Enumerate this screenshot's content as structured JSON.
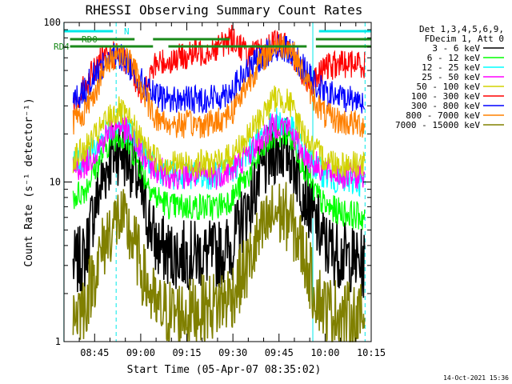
{
  "chart_data": {
    "type": "line",
    "title": "RHESSI Observing Summary Count Rates",
    "xlabel": "Start Time (05-Apr-07 08:35:02)",
    "ylabel": "Count Rate (s⁻¹ detector⁻¹)",
    "y_scale": "log",
    "ylim": [
      1,
      100
    ],
    "y_major_ticks": [
      1,
      10,
      100
    ],
    "x_tick_labels": [
      "08:45",
      "09:00",
      "09:15",
      "09:30",
      "09:45",
      "10:00",
      "10:15"
    ],
    "legend_header": [
      "Det 1,3,4,5,6,9,",
      "FDecim 1, Att 0"
    ],
    "legend_position": "right",
    "footer_timestamp": "14-Oct-2021 15:36",
    "flags": [
      {
        "name": "N",
        "color": "#00e8e8",
        "segments": [
          [
            "08:35",
            "08:51"
          ],
          [
            "09:58",
            "10:15"
          ]
        ]
      },
      {
        "name": "RD0",
        "color": "#1a8a1a",
        "segments": [
          [
            "08:37",
            "08:58"
          ],
          [
            "09:04",
            "09:29"
          ],
          [
            "09:57",
            "10:15"
          ]
        ]
      },
      {
        "name": "RD4",
        "color": "#1a8a1a",
        "segments": [
          [
            "08:37",
            "09:04"
          ],
          [
            "09:09",
            "09:54"
          ],
          [
            "09:57",
            "10:15"
          ]
        ]
      }
    ],
    "vertical_markers": [
      {
        "time": "08:35",
        "color": "#00e8e8",
        "style": "solid"
      },
      {
        "time": "08:52",
        "color": "#00e8e8",
        "style": "dashed"
      },
      {
        "time": "09:56",
        "color": "#00e8e8",
        "style": "solid"
      },
      {
        "time": "10:13",
        "color": "#00e8e8",
        "style": "dashed"
      }
    ],
    "series": [
      {
        "name": "3 - 6 keV",
        "color": "#000000",
        "x": [
          "08:38",
          "08:42",
          "08:46",
          "08:50",
          "08:53",
          "08:57",
          "09:01",
          "09:05",
          "09:10",
          "09:15",
          "09:20",
          "09:25",
          "09:30",
          "09:35",
          "09:40",
          "09:44",
          "09:48",
          "09:52",
          "09:56",
          "10:00",
          "10:05",
          "10:10",
          "10:13"
        ],
        "y": [
          3,
          3.4,
          8,
          14,
          16,
          13,
          7,
          4,
          3.5,
          3.5,
          3.5,
          3.5,
          4,
          7,
          12,
          16,
          16,
          10,
          6,
          4,
          3.5,
          3.2,
          3
        ]
      },
      {
        "name": "6 - 12 keV",
        "color": "#00ff00",
        "x": [
          "08:38",
          "08:42",
          "08:46",
          "08:50",
          "08:53",
          "08:57",
          "09:01",
          "09:05",
          "09:10",
          "09:15",
          "09:20",
          "09:25",
          "09:30",
          "09:35",
          "09:40",
          "09:44",
          "09:48",
          "09:52",
          "09:56",
          "10:00",
          "10:05",
          "10:10",
          "10:13"
        ],
        "y": [
          8,
          9,
          13,
          18,
          20,
          16,
          11,
          8,
          7,
          7,
          7,
          7,
          8,
          11,
          16,
          20,
          20,
          14,
          9,
          7,
          6.5,
          6.2,
          6
        ]
      },
      {
        "name": "12 - 25 keV",
        "color": "#00ffff",
        "x": [
          "08:38",
          "08:42",
          "08:46",
          "08:50",
          "08:53",
          "08:57",
          "09:01",
          "09:05",
          "09:10",
          "09:15",
          "09:20",
          "09:25",
          "09:30",
          "09:35",
          "09:40",
          "09:44",
          "09:48",
          "09:52",
          "09:56",
          "10:00",
          "10:05",
          "10:10",
          "10:13"
        ],
        "y": [
          13,
          14,
          17,
          22,
          24,
          20,
          15,
          12,
          11,
          11,
          11,
          11,
          12,
          15,
          20,
          24,
          23,
          17,
          13,
          11,
          10,
          10,
          10
        ]
      },
      {
        "name": "25 - 50 keV",
        "color": "#ff00ff",
        "x": [
          "08:38",
          "08:42",
          "08:46",
          "08:50",
          "08:53",
          "08:57",
          "09:01",
          "09:05",
          "09:10",
          "09:15",
          "09:20",
          "09:25",
          "09:30",
          "09:35",
          "09:40",
          "09:44",
          "09:48",
          "09:52",
          "09:56",
          "10:00",
          "10:05",
          "10:10",
          "10:13"
        ],
        "y": [
          12,
          13,
          16,
          21,
          23,
          19,
          14,
          12,
          11,
          11,
          11,
          11,
          12,
          15,
          19,
          23,
          22,
          16,
          13,
          12,
          11,
          11,
          11
        ]
      },
      {
        "name": "50 - 100 keV",
        "color": "#d2d200",
        "x": [
          "08:38",
          "08:42",
          "08:46",
          "08:50",
          "08:53",
          "08:57",
          "09:01",
          "09:05",
          "09:10",
          "09:15",
          "09:20",
          "09:25",
          "09:30",
          "09:35",
          "09:40",
          "09:44",
          "09:48",
          "09:52",
          "09:56",
          "10:00",
          "10:05",
          "10:10",
          "10:13"
        ],
        "y": [
          14,
          16,
          20,
          26,
          28,
          23,
          17,
          14,
          13,
          13,
          13,
          13,
          15,
          19,
          27,
          34,
          32,
          22,
          16,
          14,
          13,
          13,
          13
        ]
      },
      {
        "name": "100 - 300 keV",
        "color": "#ff0000",
        "x": [
          "08:38",
          "08:42",
          "08:46",
          "08:50",
          "08:53",
          "08:57",
          "09:01",
          "09:05",
          "09:10",
          "09:15",
          "09:20",
          "09:25",
          "09:30",
          "09:35",
          "09:40",
          "09:44",
          "09:48",
          "09:52",
          "09:56",
          "10:00",
          "10:05",
          "10:10",
          "10:13"
        ],
        "y": [
          28,
          40,
          55,
          62,
          62,
          50,
          35,
          55,
          58,
          62,
          65,
          70,
          80,
          62,
          65,
          75,
          70,
          50,
          40,
          52,
          55,
          55,
          55
        ]
      },
      {
        "name": "300 - 800 keV",
        "color": "#0000ff",
        "x": [
          "08:38",
          "08:42",
          "08:46",
          "08:50",
          "08:53",
          "08:57",
          "09:01",
          "09:05",
          "09:10",
          "09:15",
          "09:20",
          "09:25",
          "09:30",
          "09:35",
          "09:40",
          "09:44",
          "09:48",
          "09:52",
          "09:56",
          "10:00",
          "10:05",
          "10:10",
          "10:13"
        ],
        "y": [
          32,
          38,
          50,
          60,
          62,
          52,
          40,
          34,
          33,
          33,
          33,
          34,
          38,
          50,
          62,
          70,
          68,
          55,
          42,
          36,
          34,
          33,
          33
        ]
      },
      {
        "name": "800 - 7000 keV",
        "color": "#ff8000",
        "x": [
          "08:38",
          "08:42",
          "08:46",
          "08:50",
          "08:53",
          "08:57",
          "09:01",
          "09:05",
          "09:10",
          "09:15",
          "09:20",
          "09:25",
          "09:30",
          "09:35",
          "09:40",
          "09:44",
          "09:48",
          "09:52",
          "09:56",
          "10:00",
          "10:05",
          "10:10",
          "10:13"
        ],
        "y": [
          24,
          28,
          40,
          58,
          66,
          55,
          35,
          25,
          23,
          23,
          23,
          24,
          28,
          42,
          60,
          72,
          72,
          52,
          34,
          26,
          24,
          23,
          23
        ]
      },
      {
        "name": "7000 - 15000 keV",
        "color": "#808000",
        "x": [
          "08:38",
          "08:42",
          "08:46",
          "08:50",
          "08:53",
          "08:57",
          "09:01",
          "09:05",
          "09:10",
          "09:15",
          "09:20",
          "09:25",
          "09:30",
          "09:35",
          "09:40",
          "09:44",
          "09:48",
          "09:52",
          "09:56",
          "10:00",
          "10:05",
          "10:10",
          "10:13"
        ],
        "y": [
          1.5,
          1.7,
          3,
          5,
          6,
          4.5,
          2.5,
          1.6,
          1.5,
          1.5,
          1.6,
          1.7,
          2,
          3,
          5,
          6.5,
          6,
          4,
          2.2,
          1.6,
          1.5,
          1.4,
          1.4
        ]
      }
    ]
  }
}
